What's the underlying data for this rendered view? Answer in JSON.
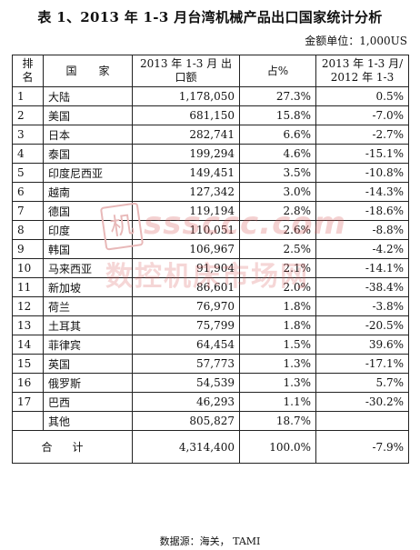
{
  "title": "表 1、2013 年 1-3 月台湾机械产品出口国家统计分析",
  "unit": "金额单位：1,000US",
  "headers": {
    "rank": "排 名",
    "country": "国　　家",
    "amount": "2013 年 1-3 月 出口额",
    "share": "占%",
    "change": "2013 年 1-3 月/ 2012 年 1-3"
  },
  "rows": [
    {
      "rank": "1",
      "country": "大陆",
      "amount": "1,178,050",
      "share": "27.3%",
      "change": "0.5%"
    },
    {
      "rank": "2",
      "country": "美国",
      "amount": "681,150",
      "share": "15.8%",
      "change": "-7.0%"
    },
    {
      "rank": "3",
      "country": "日本",
      "amount": "282,741",
      "share": "6.6%",
      "change": "-2.7%"
    },
    {
      "rank": "4",
      "country": "泰国",
      "amount": "199,294",
      "share": "4.6%",
      "change": "-15.1%"
    },
    {
      "rank": "5",
      "country": "印度尼西亚",
      "amount": "149,451",
      "share": "3.5%",
      "change": "-10.8%"
    },
    {
      "rank": "6",
      "country": "越南",
      "amount": "127,342",
      "share": "3.0%",
      "change": "-14.3%"
    },
    {
      "rank": "7",
      "country": "德国",
      "amount": "119,194",
      "share": "2.8%",
      "change": "-18.6%"
    },
    {
      "rank": "8",
      "country": "印度",
      "amount": "110,051",
      "share": "2.6%",
      "change": "-8.8%"
    },
    {
      "rank": "9",
      "country": "韩国",
      "amount": "106,967",
      "share": "2.5%",
      "change": "-4.2%"
    },
    {
      "rank": "10",
      "country": "马来西亚",
      "amount": "91,904",
      "share": "2.1%",
      "change": "-14.1%"
    },
    {
      "rank": "11",
      "country": "新加坡",
      "amount": "86,601",
      "share": "2.0%",
      "change": "-38.4%"
    },
    {
      "rank": "12",
      "country": "荷兰",
      "amount": "76,970",
      "share": "1.8%",
      "change": "-3.8%"
    },
    {
      "rank": "13",
      "country": "土耳其",
      "amount": "75,799",
      "share": "1.8%",
      "change": "-20.5%"
    },
    {
      "rank": "14",
      "country": "菲律宾",
      "amount": "64,454",
      "share": "1.5%",
      "change": "39.6%"
    },
    {
      "rank": "15",
      "country": "英国",
      "amount": "57,773",
      "share": "1.3%",
      "change": "-17.1%"
    },
    {
      "rank": "16",
      "country": "俄罗斯",
      "amount": "54,539",
      "share": "1.3%",
      "change": "5.7%"
    },
    {
      "rank": "17",
      "country": "巴西",
      "amount": "46,293",
      "share": "1.1%",
      "change": "-30.2%"
    },
    {
      "rank": "",
      "country": "其他",
      "amount": "805,827",
      "share": "18.7%",
      "change": ""
    }
  ],
  "total": {
    "label": "合计",
    "amount": "4,314,400",
    "share": "100.0%",
    "change": "-7.9%"
  },
  "source": "数据源：海关， TAMI",
  "watermark": {
    "seal": "机",
    "line1": "sssccc.com",
    "line2": "数控机床市场网"
  }
}
